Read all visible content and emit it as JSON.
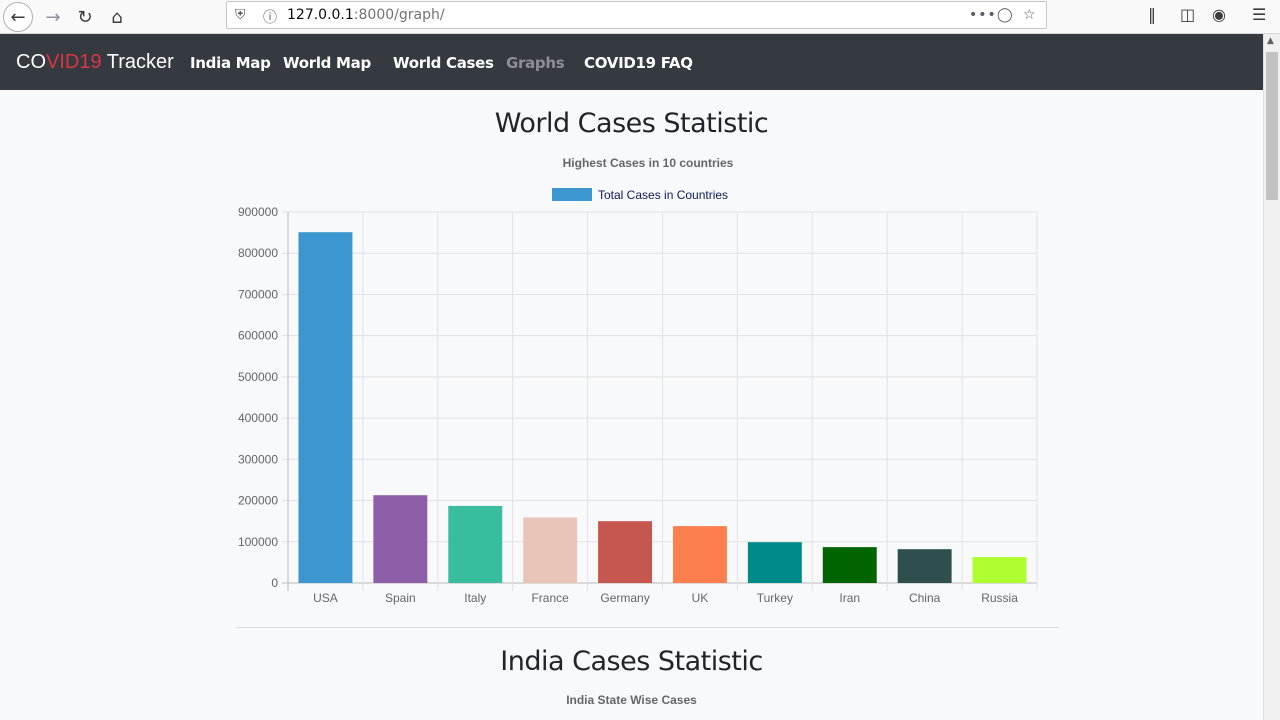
{
  "browser": {
    "url_host": "127.0.0.1",
    "url_path": ":8000/graph/"
  },
  "navbar": {
    "brand_co": "CO",
    "brand_vid19": "VID19",
    "brand_tracker": " Tracker",
    "links": [
      {
        "label": "India Map"
      },
      {
        "label": "World Map"
      },
      {
        "label": "World Cases"
      },
      {
        "label": "Graphs"
      },
      {
        "label": "COVID19 FAQ"
      }
    ]
  },
  "world_section": {
    "heading": "World Cases Statistic"
  },
  "india_section": {
    "heading": "India Cases Statistic",
    "chart_title": "India State Wise Cases"
  },
  "chart_data": {
    "type": "bar",
    "title": "Highest Cases in 10 countries",
    "legend_label": "Total Cases in Countries",
    "legend_color": "#3c96d0",
    "legend_position": "top",
    "categories": [
      "USA",
      "Spain",
      "Italy",
      "France",
      "Germany",
      "UK",
      "Turkey",
      "Iran",
      "China",
      "Russia"
    ],
    "values": [
      851000,
      213000,
      187000,
      159000,
      150000,
      138000,
      99000,
      87000,
      82000,
      63000
    ],
    "colors": [
      "#3c96d0",
      "#8f5ea8",
      "#39bd9f",
      "#e8c4b9",
      "#c6574f",
      "#fd7f4e",
      "#008b8b",
      "#006400",
      "#2f4f4f",
      "#adff2f"
    ],
    "yticks": [
      "0",
      "100000",
      "200000",
      "300000",
      "400000",
      "500000",
      "600000",
      "700000",
      "800000",
      "900000"
    ],
    "ylim": [
      0,
      900000
    ],
    "grid": true
  }
}
